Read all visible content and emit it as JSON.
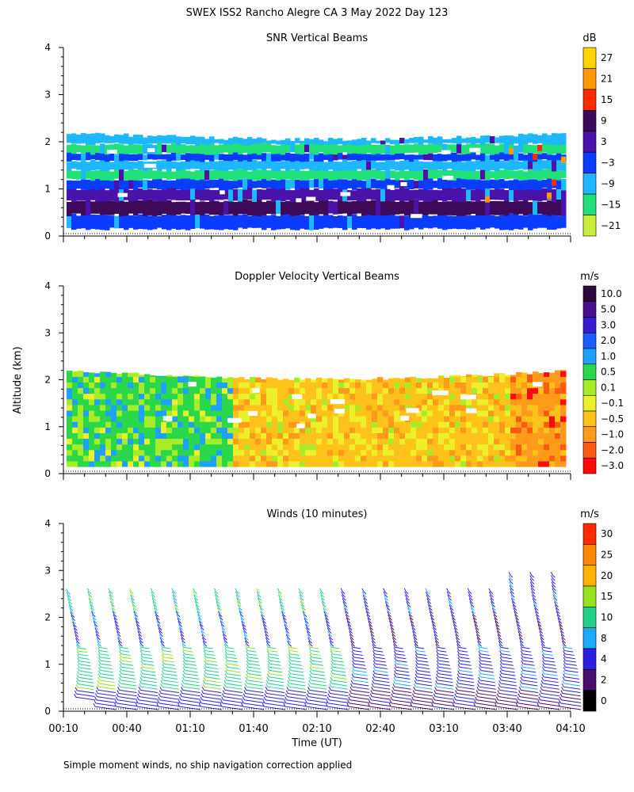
{
  "figure": {
    "title": "SWEX ISS2 Rancho Alegre CA   3 May 2022 Day 123",
    "y_axis_label": "Altitude (km)",
    "x_axis_label": "Time (UT)",
    "footnote": "Simple moment winds, no ship navigation correction applied"
  },
  "chart_data": [
    {
      "type": "heatmap",
      "title": "SNR Vertical Beams",
      "ylim": [
        0,
        4
      ],
      "yticks": [
        "0",
        "1",
        "2",
        "3",
        "4"
      ],
      "x_range": [
        "00:10",
        "04:10"
      ],
      "colorbar": {
        "unit": "dB",
        "labels": [
          "27",
          "21",
          "15",
          "9",
          "3",
          "−3",
          "−9",
          "−15",
          "−21"
        ],
        "colors": [
          "#ffd400",
          "#ff9900",
          "#ff2a00",
          "#3d0a5a",
          "#4a12a8",
          "#0a3cff",
          "#1eb8ff",
          "#22e07a",
          "#c8f03a"
        ]
      },
      "layers_km": [
        {
          "range": [
            0.15,
            0.45
          ],
          "class": "-3"
        },
        {
          "range": [
            0.45,
            0.75
          ],
          "class": "9"
        },
        {
          "range": [
            0.75,
            1.0
          ],
          "class": "3"
        },
        {
          "range": [
            1.0,
            1.2
          ],
          "class": "-3"
        },
        {
          "range": [
            1.2,
            1.4
          ],
          "class": "-15"
        },
        {
          "range": [
            1.4,
            1.6
          ],
          "class": "-9"
        },
        {
          "range": [
            1.6,
            1.75
          ],
          "class": "-3"
        },
        {
          "range": [
            1.75,
            1.95
          ],
          "class": "-15"
        },
        {
          "range": [
            1.95,
            2.2
          ],
          "class": "-9"
        }
      ]
    },
    {
      "type": "heatmap",
      "title": "Doppler Velocity Vertical Beams",
      "ylim": [
        0,
        4
      ],
      "yticks": [
        "0",
        "1",
        "2",
        "3",
        "4"
      ],
      "x_range": [
        "00:10",
        "04:10"
      ],
      "colorbar": {
        "unit": "m/s",
        "labels": [
          "10.0",
          "5.0",
          "3.0",
          "2.0",
          "1.0",
          "0.5",
          "0.1",
          "−0.1",
          "−0.5",
          "−1.0",
          "−2.0",
          "−3.0"
        ],
        "colors": [
          "#2a0a3a",
          "#4a1090",
          "#3a1cd0",
          "#1a5cff",
          "#1ea0ff",
          "#2ad84a",
          "#a8ec28",
          "#ecf02a",
          "#ffc21a",
          "#ff9a1a",
          "#ff5a10",
          "#ff0a0a"
        ]
      },
      "regions": [
        {
          "from": "00:10",
          "to": "01:30",
          "dominant": "0.5"
        },
        {
          "from": "01:30",
          "to": "03:40",
          "dominant": "-0.5"
        },
        {
          "from": "03:40",
          "to": "04:10",
          "dominant": "-1.0"
        }
      ]
    },
    {
      "type": "scatter",
      "title": "Winds (10 minutes)",
      "ylim": [
        0,
        4
      ],
      "yticks": [
        "0",
        "1",
        "2",
        "3",
        "4"
      ],
      "xticks": [
        "00:10",
        "00:40",
        "01:10",
        "01:40",
        "02:10",
        "02:40",
        "03:10",
        "03:40",
        "04:10"
      ],
      "profile_interval_minutes": 10,
      "profile_times": [
        "00:10",
        "00:20",
        "00:30",
        "00:40",
        "00:50",
        "01:00",
        "01:10",
        "01:20",
        "01:30",
        "01:40",
        "01:50",
        "02:00",
        "02:10",
        "02:20",
        "02:30",
        "02:40",
        "02:50",
        "03:00",
        "03:10",
        "03:20",
        "03:30",
        "03:40",
        "03:50",
        "04:00"
      ],
      "colorbar": {
        "unit": "m/s",
        "labels": [
          "30",
          "25",
          "20",
          "15",
          "10",
          "8",
          "4",
          "2",
          "0"
        ],
        "colors": [
          "#ff2a00",
          "#ff8a00",
          "#ffb000",
          "#96e21e",
          "#22d08a",
          "#1eaaff",
          "#2a20e0",
          "#4a0c6a",
          "#000000"
        ]
      }
    }
  ]
}
